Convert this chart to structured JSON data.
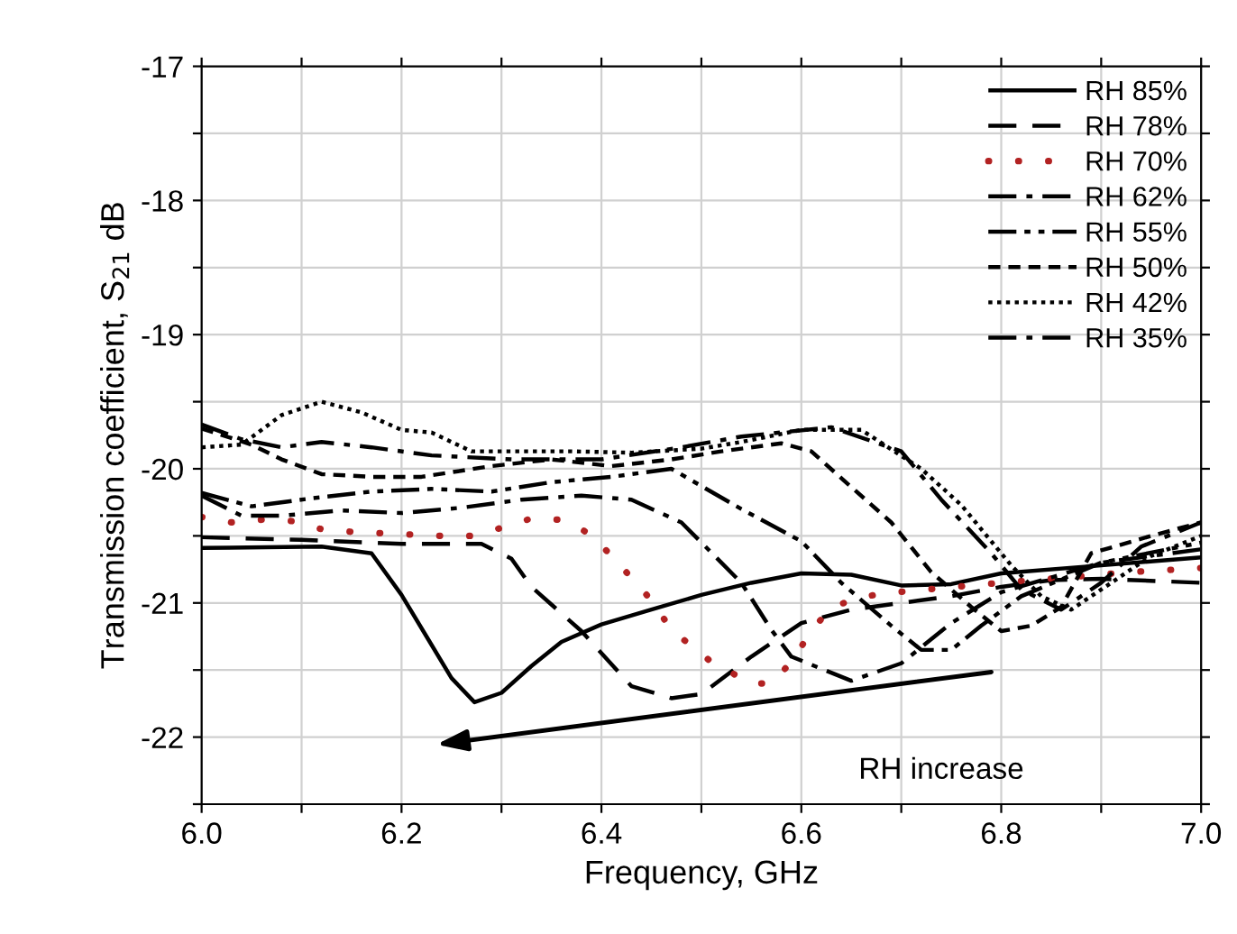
{
  "chart_data": {
    "type": "line",
    "xlabel": "Frequency, GHz",
    "ylabel": "Transmission coefficient, S$_{21}$ dB",
    "xlim": [
      6.0,
      7.0
    ],
    "ylim": [
      -22.5,
      -17
    ],
    "xticks": [
      {
        "value": 6,
        "label": "6.0"
      },
      {
        "value": 6.1,
        "label": null
      },
      6.2,
      {
        "value": 6.3,
        "label": null
      },
      6.4,
      {
        "value": 6.5,
        "label": null
      },
      6.6,
      {
        "value": 6.7,
        "label": null
      },
      6.8,
      {
        "value": 6.9,
        "label": null
      },
      {
        "value": 7,
        "label": "7.0"
      }
    ],
    "yticks": [
      {
        "value": -22.5,
        "label": null
      },
      -22,
      {
        "value": -21.5,
        "label": null
      },
      -21,
      {
        "value": -20.5,
        "label": null
      },
      -20,
      {
        "value": -19.5,
        "label": null
      },
      -19,
      {
        "value": -18.5,
        "label": null
      },
      -18,
      {
        "value": -17.5,
        "label": null
      },
      -17
    ],
    "grid": true,
    "legend": "top right",
    "marker": "none",
    "annotations": [
      "RH increase"
    ],
    "series": [
      {
        "name": "RH 85%",
        "color": "#000000",
        "line_style": "solid",
        "x": [
          6.0,
          6.12,
          6.17,
          6.2,
          6.225,
          6.25,
          6.273,
          6.3,
          6.33,
          6.36,
          6.4,
          6.45,
          6.5,
          6.55,
          6.6,
          6.65,
          6.7,
          6.75,
          6.8,
          6.9,
          7.0
        ],
        "values": [
          -20.59,
          -20.58,
          -20.63,
          -20.94,
          -21.25,
          -21.56,
          -21.74,
          -21.67,
          -21.47,
          -21.29,
          -21.16,
          -21.05,
          -20.94,
          -20.85,
          -20.78,
          -20.79,
          -20.87,
          -20.86,
          -20.78,
          -20.72,
          -20.66
        ]
      },
      {
        "name": "RH 78%",
        "color": "#000000",
        "line_style": "longdash",
        "x": [
          6.0,
          6.1,
          6.2,
          6.28,
          6.31,
          6.33,
          6.38,
          6.43,
          6.47,
          6.5,
          6.55,
          6.6,
          6.65,
          6.7,
          6.75,
          6.8,
          6.85,
          6.9,
          7.0
        ],
        "values": [
          -20.51,
          -20.53,
          -20.56,
          -20.56,
          -20.67,
          -20.88,
          -21.21,
          -21.62,
          -21.71,
          -21.68,
          -21.4,
          -21.15,
          -21.05,
          -21.0,
          -20.95,
          -20.88,
          -20.83,
          -20.82,
          -20.85
        ]
      },
      {
        "name": "RH 70%",
        "color": "#b22222",
        "line_style": "dotted",
        "x": [
          6.0,
          6.03,
          6.06,
          6.09,
          6.12,
          6.15,
          6.18,
          6.21,
          6.24,
          6.27,
          6.3,
          6.33,
          6.36,
          6.39,
          6.42,
          6.45,
          6.47,
          6.51,
          6.55,
          6.57,
          6.59,
          6.61,
          6.63,
          6.66,
          6.68,
          6.8,
          6.93,
          7.0
        ],
        "values": [
          -20.36,
          -20.4,
          -20.38,
          -20.39,
          -20.45,
          -20.47,
          -20.48,
          -20.49,
          -20.5,
          -20.5,
          -20.44,
          -20.37,
          -20.38,
          -20.49,
          -20.73,
          -20.98,
          -21.2,
          -21.44,
          -21.6,
          -21.6,
          -21.44,
          -21.21,
          -21.03,
          -20.96,
          -20.93,
          -20.85,
          -20.77,
          -20.74
        ]
      },
      {
        "name": "RH 62%",
        "color": "#000000",
        "line_style": "dashdot",
        "x": [
          6.0,
          6.04,
          6.08,
          6.14,
          6.2,
          6.26,
          6.32,
          6.38,
          6.43,
          6.48,
          6.54,
          6.57,
          6.59,
          6.65,
          6.7,
          6.75,
          6.8,
          6.9,
          7.0
        ],
        "values": [
          -20.2,
          -20.35,
          -20.35,
          -20.31,
          -20.33,
          -20.29,
          -20.23,
          -20.2,
          -20.23,
          -20.4,
          -20.85,
          -21.2,
          -21.4,
          -21.58,
          -21.45,
          -21.15,
          -20.92,
          -20.7,
          -20.6
        ]
      },
      {
        "name": "RH 55%",
        "color": "#000000",
        "line_style": "dashdotdot",
        "x": [
          6.0,
          6.05,
          6.11,
          6.17,
          6.23,
          6.29,
          6.35,
          6.41,
          6.47,
          6.54,
          6.6,
          6.64,
          6.69,
          6.72,
          6.75,
          6.78,
          6.82,
          6.9,
          7.0
        ],
        "values": [
          -20.18,
          -20.28,
          -20.22,
          -20.17,
          -20.15,
          -20.17,
          -20.1,
          -20.06,
          -20.0,
          -20.3,
          -20.54,
          -20.85,
          -21.17,
          -21.35,
          -21.35,
          -21.17,
          -20.95,
          -20.7,
          -20.55
        ]
      },
      {
        "name": "RH 50%",
        "color": "#000000",
        "line_style": "dashed",
        "x": [
          6.0,
          6.05,
          6.08,
          6.12,
          6.17,
          6.22,
          6.29,
          6.35,
          6.41,
          6.47,
          6.52,
          6.58,
          6.61,
          6.64,
          6.69,
          6.73,
          6.77,
          6.8,
          6.83,
          6.86,
          6.89,
          6.95,
          7.0
        ],
        "values": [
          -19.7,
          -19.82,
          -19.93,
          -20.04,
          -20.06,
          -20.06,
          -19.98,
          -19.93,
          -19.98,
          -19.93,
          -19.87,
          -19.81,
          -19.87,
          -20.07,
          -20.4,
          -20.77,
          -21.03,
          -21.21,
          -21.17,
          -21.03,
          -20.63,
          -20.5,
          -20.4
        ]
      },
      {
        "name": "RH 42%",
        "color": "#000000",
        "line_style": "dotted",
        "x": [
          6.0,
          6.04,
          6.08,
          6.12,
          6.16,
          6.2,
          6.23,
          6.27,
          6.31,
          6.37,
          6.43,
          6.5,
          6.54,
          6.6,
          6.66,
          6.72,
          6.76,
          6.79,
          6.81,
          6.84,
          6.87,
          6.9,
          6.95,
          7.0
        ],
        "values": [
          -19.84,
          -19.82,
          -19.6,
          -19.5,
          -19.58,
          -19.71,
          -19.73,
          -19.87,
          -19.87,
          -19.87,
          -19.88,
          -19.85,
          -19.8,
          -19.71,
          -19.71,
          -20.0,
          -20.27,
          -20.54,
          -20.72,
          -20.95,
          -21.05,
          -20.9,
          -20.65,
          -20.5
        ]
      },
      {
        "name": "RH 35%",
        "color": "#000000",
        "line_style": "dashdot",
        "x": [
          6.0,
          6.04,
          6.08,
          6.12,
          6.17,
          6.23,
          6.31,
          6.4,
          6.48,
          6.54,
          6.63,
          6.7,
          6.74,
          6.79,
          6.82,
          6.86,
          6.9,
          6.94,
          7.0
        ],
        "values": [
          -19.67,
          -19.78,
          -19.84,
          -19.8,
          -19.84,
          -19.9,
          -19.93,
          -19.93,
          -19.84,
          -19.76,
          -19.69,
          -19.87,
          -20.23,
          -20.63,
          -20.9,
          -21.05,
          -20.85,
          -20.58,
          -20.4
        ]
      }
    ]
  }
}
